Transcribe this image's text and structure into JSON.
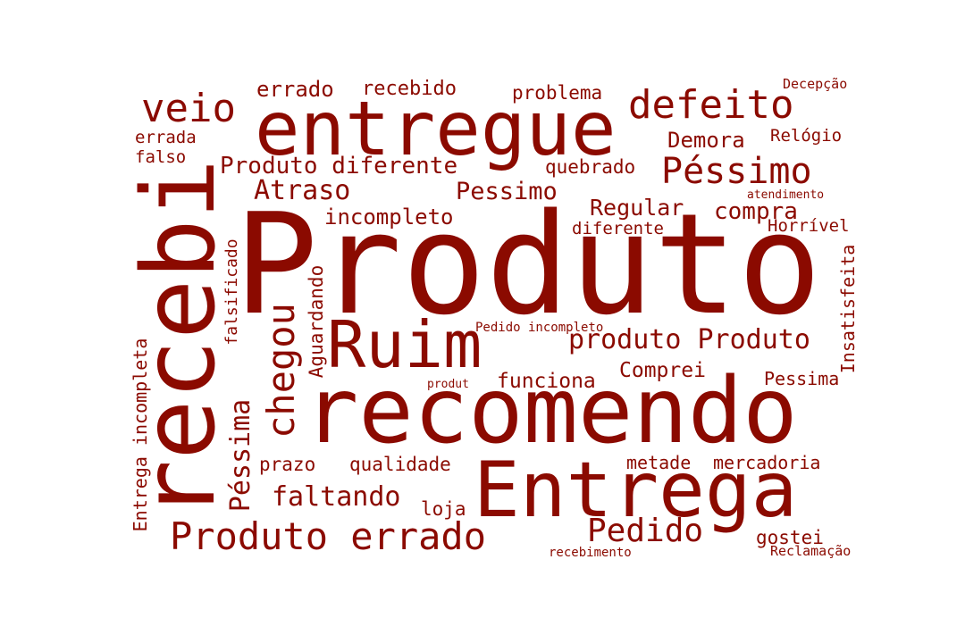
{
  "word_cloud": {
    "color": "#8b0a00",
    "background": "#ffffff",
    "words": [
      {
        "text": "Produto",
        "orientation": "horizontal"
      },
      {
        "text": "recomendo",
        "orientation": "horizontal"
      },
      {
        "text": "entregue",
        "orientation": "horizontal"
      },
      {
        "text": "Entrega",
        "orientation": "horizontal"
      },
      {
        "text": "recebi",
        "orientation": "vertical"
      },
      {
        "text": "Ruim",
        "orientation": "horizontal"
      },
      {
        "text": "defeito",
        "orientation": "horizontal"
      },
      {
        "text": "Péssimo",
        "orientation": "horizontal"
      },
      {
        "text": "veio",
        "orientation": "horizontal"
      },
      {
        "text": "chegou",
        "orientation": "vertical"
      },
      {
        "text": "Produto errado",
        "orientation": "horizontal"
      },
      {
        "text": "Pedido",
        "orientation": "horizontal"
      },
      {
        "text": "produto Produto",
        "orientation": "horizontal"
      },
      {
        "text": "Atraso",
        "orientation": "horizontal"
      },
      {
        "text": "Péssima",
        "orientation": "vertical"
      },
      {
        "text": "faltando",
        "orientation": "horizontal"
      },
      {
        "text": "Produto diferente",
        "orientation": "horizontal"
      },
      {
        "text": "Pessimo",
        "orientation": "horizontal"
      },
      {
        "text": "Regular",
        "orientation": "horizontal"
      },
      {
        "text": "compra",
        "orientation": "horizontal"
      },
      {
        "text": "incompleto",
        "orientation": "horizontal"
      },
      {
        "text": "errado",
        "orientation": "horizontal"
      },
      {
        "text": "recebido",
        "orientation": "horizontal"
      },
      {
        "text": "problema",
        "orientation": "horizontal"
      },
      {
        "text": "Demora",
        "orientation": "horizontal"
      },
      {
        "text": "quebrado",
        "orientation": "horizontal"
      },
      {
        "text": "funciona",
        "orientation": "horizontal"
      },
      {
        "text": "Comprei",
        "orientation": "horizontal"
      },
      {
        "text": "Pessima",
        "orientation": "horizontal"
      },
      {
        "text": "prazo",
        "orientation": "horizontal"
      },
      {
        "text": "qualidade",
        "orientation": "horizontal"
      },
      {
        "text": "metade",
        "orientation": "horizontal"
      },
      {
        "text": "mercadoria",
        "orientation": "horizontal"
      },
      {
        "text": "loja",
        "orientation": "horizontal"
      },
      {
        "text": "gostei",
        "orientation": "horizontal"
      },
      {
        "text": "Aguardando",
        "orientation": "vertical"
      },
      {
        "text": "falsificado",
        "orientation": "vertical"
      },
      {
        "text": "Entrega incompleta",
        "orientation": "vertical"
      },
      {
        "text": "Insatisfeita",
        "orientation": "vertical"
      },
      {
        "text": "Relógio",
        "orientation": "horizontal"
      },
      {
        "text": "Horrível",
        "orientation": "horizontal"
      },
      {
        "text": "diferente",
        "orientation": "horizontal"
      },
      {
        "text": "errada",
        "orientation": "horizontal"
      },
      {
        "text": "falso",
        "orientation": "horizontal"
      },
      {
        "text": "Decepção",
        "orientation": "horizontal"
      },
      {
        "text": "atendimento",
        "orientation": "horizontal"
      },
      {
        "text": "Pedido incompleto",
        "orientation": "horizontal"
      },
      {
        "text": "produt",
        "orientation": "horizontal"
      },
      {
        "text": "recebimento",
        "orientation": "horizontal"
      },
      {
        "text": "Reclamação",
        "orientation": "horizontal"
      }
    ]
  }
}
